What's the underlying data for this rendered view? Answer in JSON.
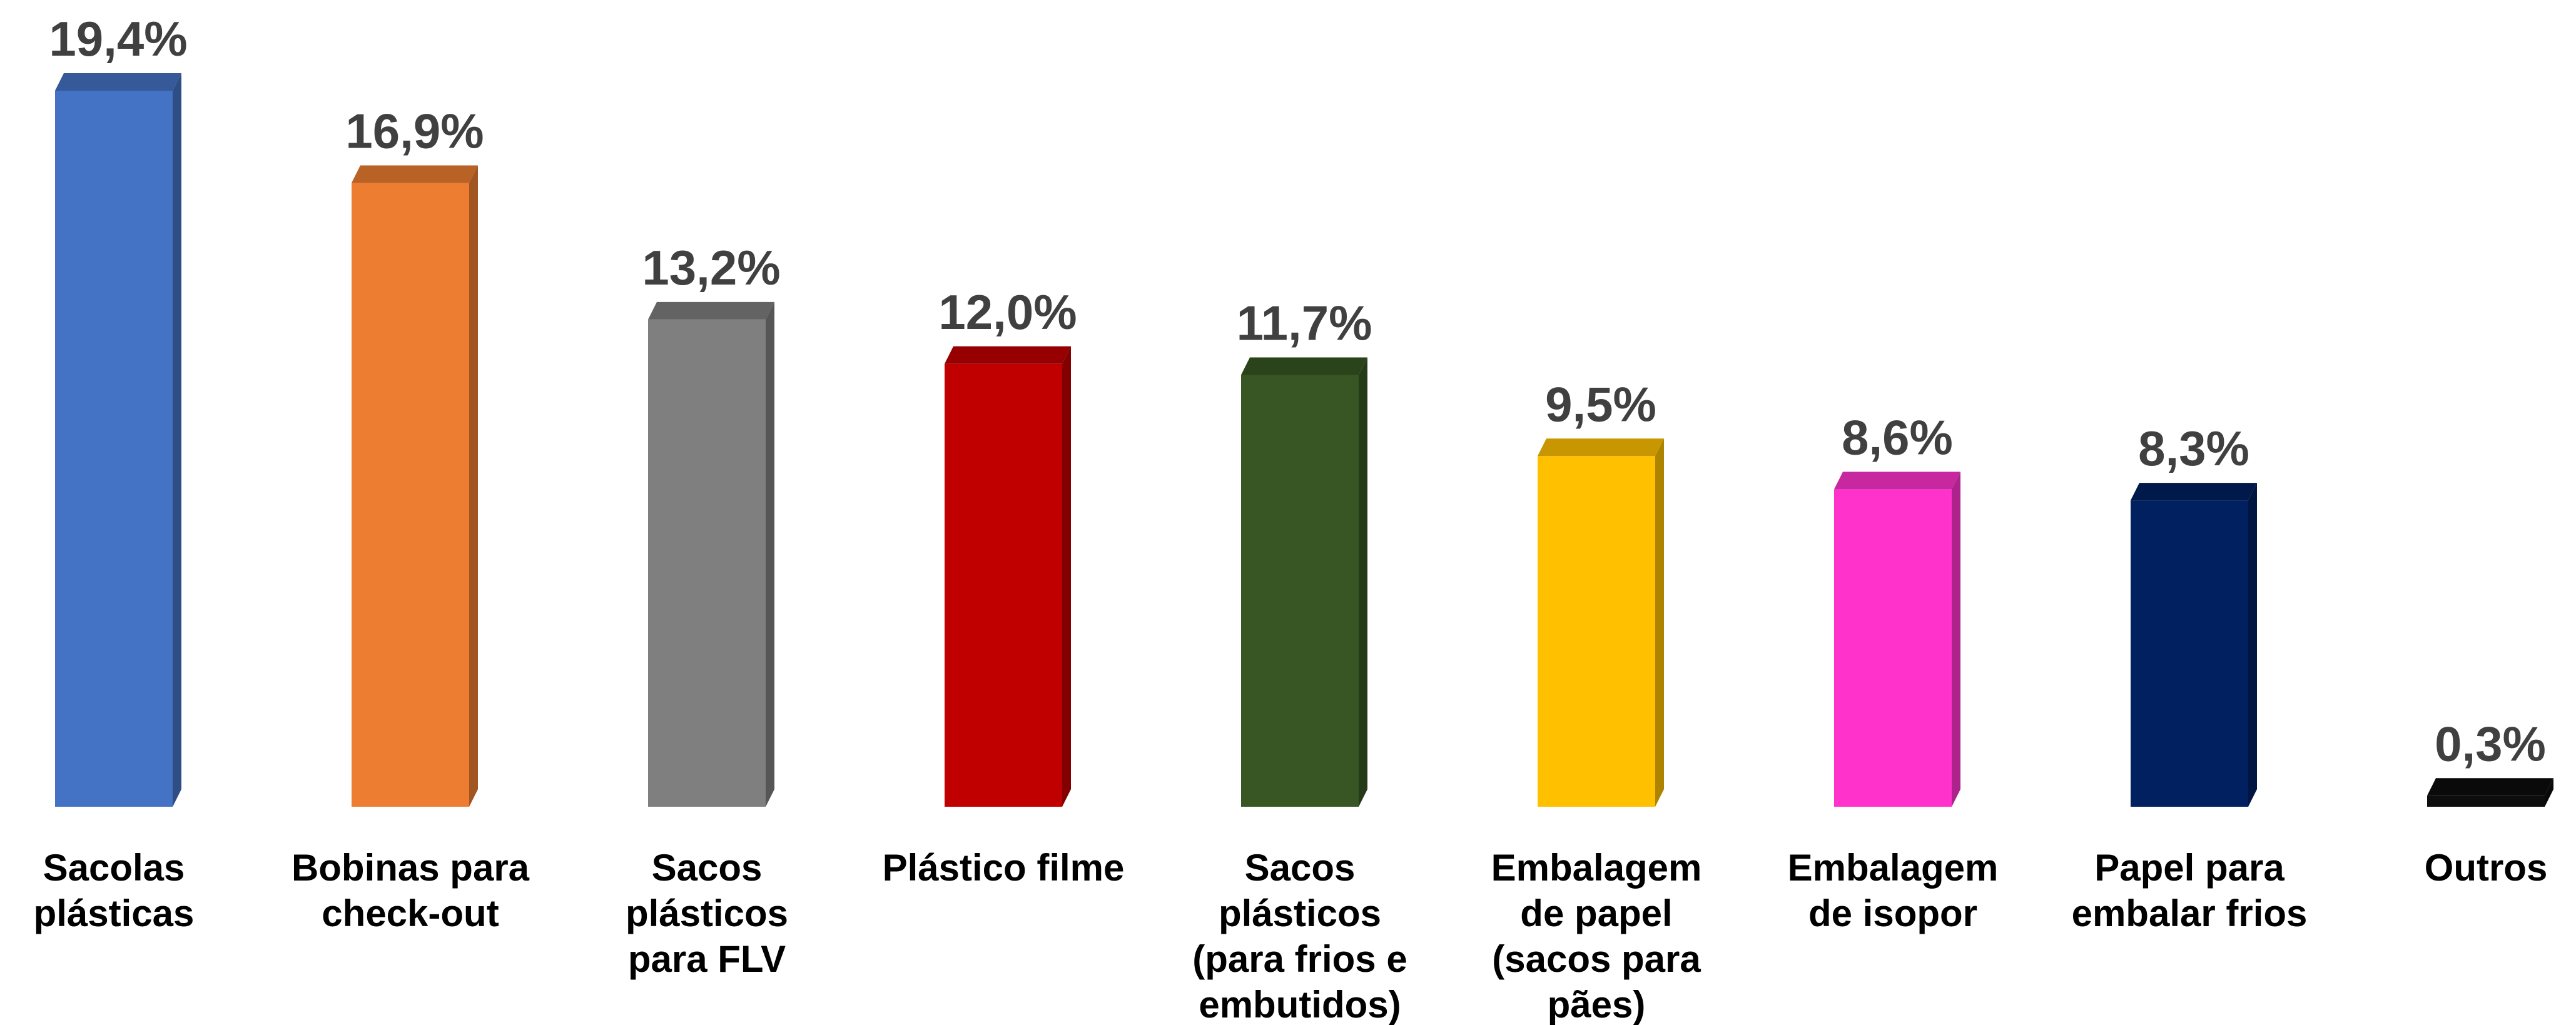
{
  "chart_data": {
    "type": "bar",
    "title": "",
    "xlabel": "",
    "ylabel": "",
    "ylim": [
      0,
      19.4
    ],
    "grid": false,
    "legend": "none",
    "categories": [
      [
        "Sacolas",
        "plásticas"
      ],
      [
        "Bobinas para",
        "check-out"
      ],
      [
        "Sacos",
        "plásticos",
        "para FLV"
      ],
      [
        "Plástico filme"
      ],
      [
        "Sacos",
        "plásticos",
        "(para frios e",
        "embutidos)"
      ],
      [
        "Embalagem",
        "de papel",
        "(sacos para",
        "pães)"
      ],
      [
        "Embalagem",
        "de isopor"
      ],
      [
        "Papel para",
        "embalar frios"
      ],
      [
        "Outros"
      ]
    ],
    "values": [
      19.4,
      16.9,
      13.2,
      12.0,
      11.7,
      9.5,
      8.6,
      8.3,
      0.3
    ],
    "value_labels": [
      "19,4%",
      "16,9%",
      "13,2%",
      "12,0%",
      "11,7%",
      "9,5%",
      "8,6%",
      "8,3%",
      "0,3%"
    ],
    "colors": [
      "#4472C4",
      "#ED7D31",
      "#7F7F7F",
      "#C00000",
      "#375623",
      "#FFC000",
      "#FF33CC",
      "#002060",
      "#0D0D0D"
    ]
  }
}
